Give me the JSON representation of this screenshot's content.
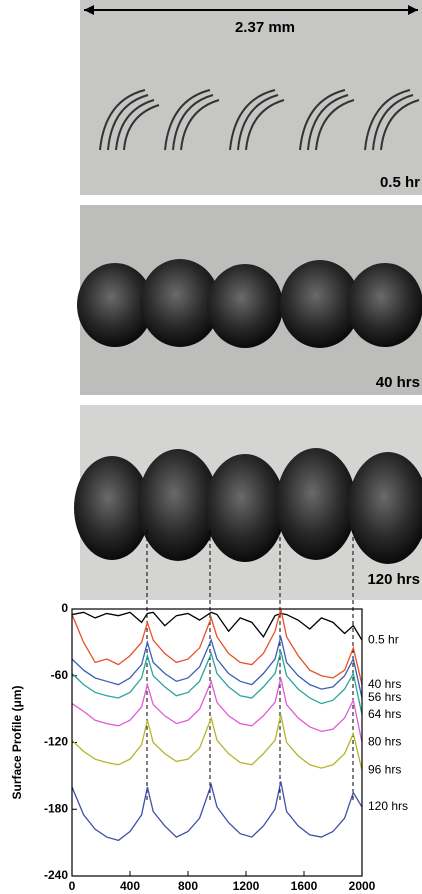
{
  "scale_bar": "2.37 mm",
  "panels": [
    {
      "label": "0.5 hr"
    },
    {
      "label": "40 hrs"
    },
    {
      "label": "120 hrs"
    }
  ],
  "chart_data": {
    "type": "line",
    "xlabel": "Position (μm)",
    "ylabel": "Surface Profile (μm)",
    "x": [
      0,
      80,
      160,
      240,
      320,
      400,
      480,
      520,
      560,
      640,
      720,
      800,
      880,
      960,
      1000,
      1080,
      1160,
      1240,
      1320,
      1400,
      1440,
      1480,
      1560,
      1640,
      1720,
      1800,
      1880,
      1940,
      2000
    ],
    "xlim": [
      0,
      2000
    ],
    "xticks": [
      0,
      400,
      800,
      1200,
      1600,
      2000
    ],
    "ylim": [
      -240,
      0
    ],
    "yticks": [
      0,
      -60,
      -120,
      -180,
      -240
    ],
    "series": [
      {
        "name": "0.5 hr",
        "color": "#000000",
        "values": [
          -5,
          -3,
          -8,
          -4,
          -6,
          -3,
          -12,
          -4,
          -3,
          -15,
          -6,
          -4,
          -10,
          -3,
          -5,
          -20,
          -8,
          -12,
          -25,
          -6,
          -4,
          -5,
          -10,
          -18,
          -8,
          -12,
          -22,
          -15,
          -28
        ]
      },
      {
        "name": "40 hrs",
        "color": "#e8502b",
        "values": [
          -5,
          -30,
          -48,
          -45,
          -50,
          -42,
          -30,
          -12,
          -28,
          -40,
          -48,
          -45,
          -35,
          -8,
          -25,
          -40,
          -48,
          -50,
          -40,
          -20,
          0,
          -25,
          -42,
          -55,
          -60,
          -62,
          -55,
          -35,
          -68
        ]
      },
      {
        "name": "56 hrs",
        "color": "#3a5fb5",
        "values": [
          -45,
          -55,
          -62,
          -65,
          -68,
          -62,
          -50,
          -30,
          -48,
          -58,
          -65,
          -62,
          -52,
          -28,
          -45,
          -58,
          -65,
          -68,
          -58,
          -45,
          -25,
          -48,
          -60,
          -68,
          -72,
          -70,
          -60,
          -45,
          -80
        ]
      },
      {
        "name": "64 hrs",
        "color": "#2aa59a",
        "values": [
          -58,
          -68,
          -75,
          -78,
          -80,
          -75,
          -62,
          -42,
          -60,
          -70,
          -78,
          -75,
          -65,
          -40,
          -58,
          -70,
          -78,
          -80,
          -70,
          -58,
          -38,
          -60,
          -72,
          -80,
          -85,
          -82,
          -72,
          -58,
          -95
        ]
      },
      {
        "name": "80 hrs",
        "color": "#e25ad8",
        "values": [
          -85,
          -92,
          -100,
          -103,
          -105,
          -100,
          -88,
          -68,
          -86,
          -96,
          -103,
          -100,
          -90,
          -65,
          -84,
          -96,
          -103,
          -105,
          -96,
          -84,
          -62,
          -86,
          -98,
          -106,
          -110,
          -108,
          -98,
          -82,
          -120
        ]
      },
      {
        "name": "96 hrs",
        "color": "#b5b52a",
        "values": [
          -118,
          -128,
          -135,
          -138,
          -140,
          -135,
          -122,
          -100,
          -120,
          -130,
          -137,
          -135,
          -125,
          -98,
          -118,
          -130,
          -138,
          -140,
          -130,
          -118,
          -95,
          -120,
          -132,
          -140,
          -143,
          -140,
          -130,
          -112,
          -145
        ]
      },
      {
        "name": "120 hrs",
        "color": "#3f4fa8",
        "values": [
          -160,
          -185,
          -198,
          -205,
          -208,
          -200,
          -185,
          -160,
          -182,
          -195,
          -205,
          -200,
          -188,
          -158,
          -178,
          -192,
          -202,
          -205,
          -195,
          -180,
          -155,
          -182,
          -195,
          -203,
          -205,
          -200,
          -188,
          -165,
          -178
        ]
      }
    ]
  }
}
